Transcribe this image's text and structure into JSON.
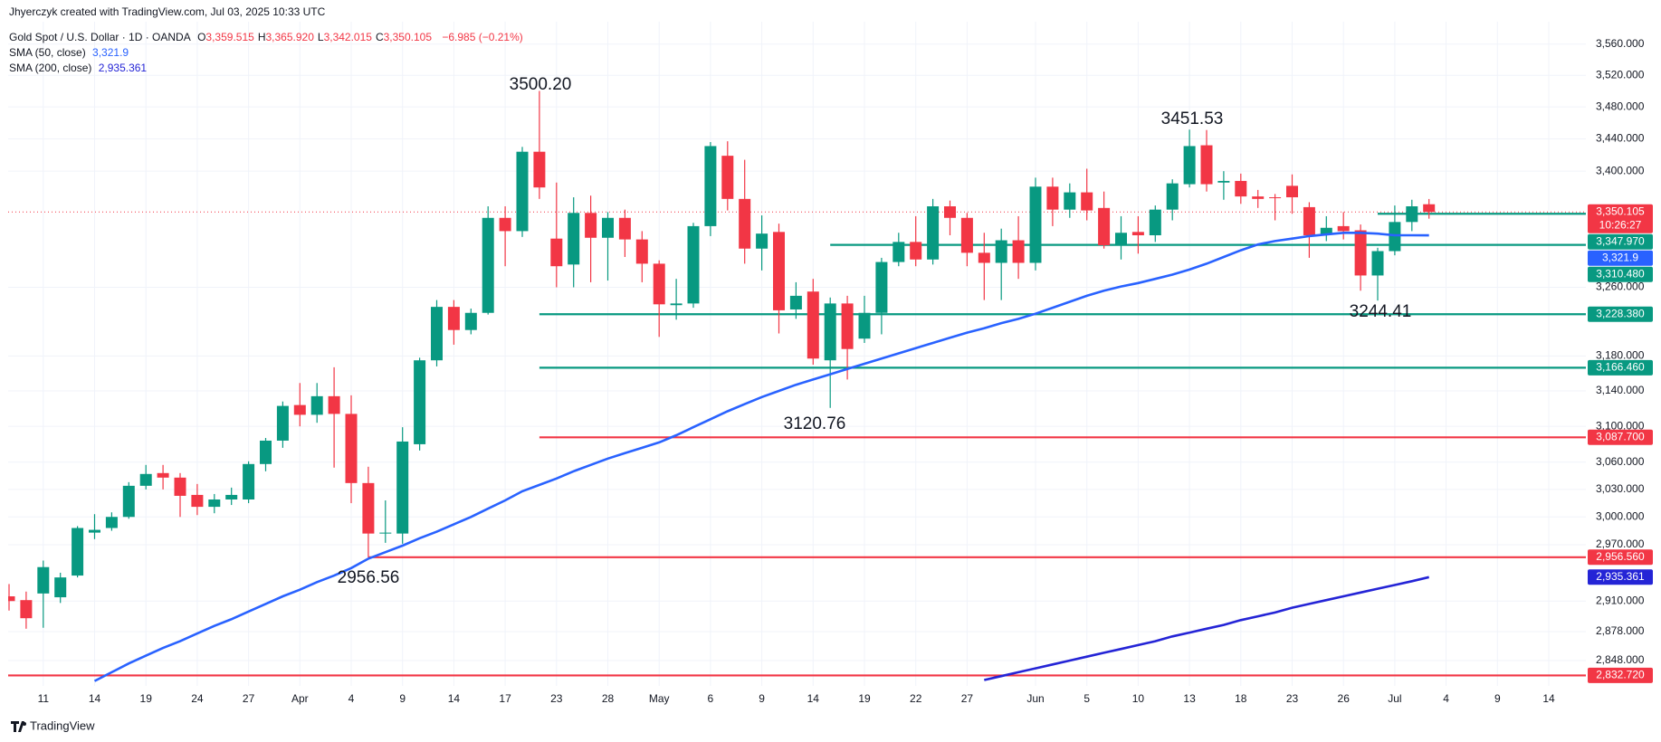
{
  "header": {
    "credit": "Jhyerczyk created with TradingView.com, Jul 03, 2025 10:33 UTC"
  },
  "chart_data": {
    "type": "candlestick",
    "title": "Gold Spot / U.S. Dollar · 1D · OANDA",
    "ohlc_legend": [
      {
        "key": "O",
        "value": "3,359.515"
      },
      {
        "key": "H",
        "value": "3,365.920"
      },
      {
        "key": "L",
        "value": "3,342.015"
      },
      {
        "key": "C",
        "value": "3,350.105"
      }
    ],
    "change": "−6.985 (−0.21%)",
    "categories": [
      null,
      null,
      "11",
      null,
      null,
      "14",
      null,
      null,
      "19",
      null,
      null,
      "24",
      null,
      null,
      "27",
      null,
      null,
      "Apr",
      null,
      null,
      "4",
      null,
      null,
      "9",
      null,
      null,
      "14",
      null,
      null,
      "17",
      null,
      null,
      "23",
      null,
      null,
      "28",
      null,
      null,
      "May",
      null,
      null,
      "6",
      null,
      null,
      "9",
      null,
      null,
      "14",
      null,
      null,
      "19",
      null,
      null,
      "22",
      null,
      null,
      "27",
      null,
      null,
      null,
      "Jun",
      null,
      null,
      "5",
      null,
      null,
      "10",
      null,
      null,
      "13",
      null,
      null,
      "18",
      null,
      null,
      "23",
      null,
      null,
      "26",
      null,
      null,
      "Jul",
      null,
      null,
      "4",
      null,
      null,
      "9",
      null,
      null,
      "14"
    ],
    "open": [
      2915,
      2911,
      2918,
      2914,
      2937,
      2983,
      2988,
      3000,
      3034,
      3048,
      3043,
      3024,
      3011,
      3019,
      3019,
      3058,
      3084,
      3124,
      3113,
      3134,
      3114,
      3037,
      2982,
      2982,
      3080,
      3175,
      3237,
      3210,
      3230,
      3343,
      3327,
      3424,
      3318,
      3287,
      3349,
      3319,
      3343,
      3317,
      3288,
      3239,
      3241,
      3333,
      3419,
      3366,
      3306,
      3326,
      3234,
      3255,
      3175,
      3241,
      3200,
      3230,
      3290,
      3314,
      3293,
      3357,
      3343,
      3301,
      3289,
      3316,
      3289,
      3381,
      3353,
      3374,
      3355,
      3310,
      3326,
      3322,
      3353,
      3384,
      3432,
      3386,
      3388,
      3369,
      3368,
      3382,
      3356,
      3323,
      3333,
      3328,
      3274,
      3303,
      3338,
      3359.515,
      null,
      null,
      null,
      null,
      null,
      null,
      null
    ],
    "high": [
      2928,
      2920,
      2953,
      2940,
      2990,
      3003,
      3005,
      3038,
      3057,
      3057,
      3048,
      3036,
      3025,
      3032,
      3061,
      3087,
      3128,
      3149,
      3149,
      3167,
      3135,
      3055,
      3018,
      3099,
      3178,
      3245,
      3245,
      3235,
      3357,
      3357,
      3430,
      3500.2,
      3386,
      3368,
      3370,
      3350,
      3353,
      3327,
      3292,
      3270,
      3337,
      3436,
      3437,
      3414,
      3346,
      3336,
      3266,
      3270,
      3248,
      3250,
      3250,
      3295,
      3325,
      3345,
      3366,
      3364,
      3349,
      3325,
      3330,
      3345,
      3392,
      3392,
      3385,
      3403,
      3375,
      3345,
      3345,
      3358,
      3390,
      3451.53,
      3451,
      3400,
      3397,
      3377,
      3372,
      3396,
      3362,
      3345,
      3350,
      3335,
      3307,
      3358,
      3365,
      3365.92,
      null,
      null,
      null,
      null,
      null,
      null,
      null
    ],
    "low": [
      2900,
      2881,
      2882,
      2908,
      2935,
      2976,
      2985,
      2998,
      3030,
      3030,
      3000,
      3002,
      3004,
      3013,
      3015,
      3050,
      3076,
      3100,
      3104,
      3054,
      3015,
      2956.56,
      2972,
      2971,
      3073,
      3168,
      3193,
      3205,
      3228,
      3285,
      3320,
      3366,
      3260,
      3260,
      3266,
      3268,
      3296,
      3266,
      3202,
      3222,
      3236,
      3321,
      3352,
      3288,
      3280,
      3206,
      3223,
      3170,
      3120.76,
      3153,
      3195,
      3205,
      3285,
      3285,
      3287,
      3322,
      3285,
      3245,
      3245,
      3270,
      3280,
      3333,
      3343,
      3340,
      3306,
      3293,
      3300,
      3314,
      3340,
      3380,
      3375,
      3365,
      3360,
      3355,
      3340,
      3348,
      3295,
      3315,
      3317,
      3256,
      3244.41,
      3298,
      3327,
      3342.015,
      null,
      null,
      null,
      null,
      null,
      null,
      null
    ],
    "close": [
      2910,
      2892,
      2946,
      2935,
      2988,
      2986,
      3000,
      3034,
      3047,
      3043,
      3023,
      3011,
      3019,
      3024,
      3058,
      3084,
      3123,
      3113,
      3134,
      3114,
      3037,
      2982,
      2983,
      3083,
      3175,
      3237,
      3210,
      3230,
      3343,
      3327,
      3424,
      3380,
      3285,
      3349,
      3319,
      3343,
      3317,
      3288,
      3240,
      3241,
      3333,
      3431,
      3366,
      3306,
      3324,
      3233,
      3250,
      3177,
      3241,
      3188,
      3230,
      3290,
      3314,
      3293,
      3357,
      3343,
      3301,
      3289,
      3316,
      3289,
      3381,
      3353,
      3374,
      3352,
      3310,
      3325,
      3322,
      3353,
      3385,
      3431,
      3384,
      3388,
      3369,
      3366,
      3367,
      3368,
      3322,
      3331,
      3327,
      3274,
      3303,
      3338,
      3357,
      3350.105,
      null,
      null,
      null,
      null,
      null,
      null,
      null
    ],
    "up_color": "#089981",
    "down_color": "#f23645",
    "last_price": {
      "label": "3,350.105",
      "countdown": "10:26:27"
    },
    "indicators": [
      {
        "name": "SMA (50, close)",
        "value_label": "3,321.9",
        "color": "#2962ff",
        "values": [
          null,
          null,
          null,
          null,
          null,
          2827,
          2836,
          2845,
          2853,
          2861,
          2868,
          2876,
          2884,
          2891,
          2899,
          2907,
          2915,
          2922,
          2930,
          2937,
          2945,
          2955,
          2962,
          2969,
          2977,
          2984,
          2992,
          3000,
          3009,
          3018,
          3028,
          3035,
          3042,
          3050,
          3057,
          3064,
          3070,
          3076,
          3082,
          3090,
          3099,
          3108,
          3117,
          3125,
          3133,
          3140,
          3147,
          3153,
          3159,
          3165,
          3171,
          3177,
          3183,
          3189,
          3195,
          3201,
          3207,
          3212,
          3218,
          3223,
          3229,
          3236,
          3243,
          3250,
          3256,
          3261,
          3265,
          3270,
          3275,
          3281,
          3288,
          3296,
          3304,
          3311,
          3315,
          3318,
          3321,
          3323,
          3325,
          3325,
          3324,
          3322,
          3322,
          3321.9,
          null,
          null,
          null,
          null,
          null,
          null,
          null
        ]
      },
      {
        "name": "SMA (200, close)",
        "value_label": "2,935.361",
        "color": "#2424d6",
        "values": [
          null,
          null,
          null,
          null,
          null,
          null,
          null,
          null,
          null,
          null,
          null,
          null,
          null,
          null,
          null,
          null,
          null,
          null,
          null,
          null,
          null,
          null,
          null,
          null,
          null,
          null,
          null,
          null,
          null,
          null,
          null,
          null,
          null,
          null,
          null,
          null,
          null,
          null,
          null,
          null,
          null,
          null,
          null,
          null,
          null,
          null,
          null,
          null,
          null,
          null,
          null,
          null,
          null,
          null,
          null,
          null,
          null,
          2828,
          2832,
          2836,
          2840,
          2844,
          2848,
          2852,
          2856,
          2860,
          2864,
          2868,
          2873,
          2877,
          2881,
          2885,
          2890,
          2894,
          2898,
          2903,
          2907,
          2911,
          2915,
          2919,
          2923,
          2927,
          2931,
          2935.361,
          null,
          null,
          null,
          null,
          null,
          null,
          null
        ]
      }
    ],
    "levels": [
      {
        "value": 3347.97,
        "label": "3,347.970",
        "color": "#089981"
      },
      {
        "value": 3310.48,
        "label": "3,310.480",
        "color": "#089981"
      },
      {
        "value": 3228.38,
        "label": "3,228.380",
        "color": "#089981"
      },
      {
        "value": 3166.46,
        "label": "3,166.460",
        "color": "#089981"
      },
      {
        "value": 3087.7,
        "label": "3,087.700",
        "color": "#f23645"
      },
      {
        "value": 2956.56,
        "label": "2,956.560",
        "color": "#f23645"
      },
      {
        "value": 2832.72,
        "label": "2,832.720",
        "color": "#f23645"
      }
    ],
    "annotations": [
      {
        "text": "3500.20"
      },
      {
        "text": "3451.53"
      },
      {
        "text": "3120.76"
      },
      {
        "text": "2956.56"
      },
      {
        "text": "3244.41"
      }
    ],
    "ylim": [
      2822,
      3589
    ],
    "log_scale": true,
    "yticks": [
      {
        "value": 3560,
        "label": "3,560.000"
      },
      {
        "value": 3520,
        "label": "3,520.000"
      },
      {
        "value": 3480,
        "label": "3,480.000"
      },
      {
        "value": 3440,
        "label": "3,440.000"
      },
      {
        "value": 3400,
        "label": "3,400.000"
      },
      {
        "value": 3260,
        "label": "3,260.000"
      },
      {
        "value": 3180,
        "label": "3,180.000"
      },
      {
        "value": 3140,
        "label": "3,140.000"
      },
      {
        "value": 3100,
        "label": "3,100.000"
      },
      {
        "value": 3060,
        "label": "3,060.000"
      },
      {
        "value": 3030,
        "label": "3,030.000"
      },
      {
        "value": 3000,
        "label": "3,000.000"
      },
      {
        "value": 2970,
        "label": "2,970.000"
      },
      {
        "value": 2910,
        "label": "2,910.000"
      },
      {
        "value": 2878,
        "label": "2,878.000"
      },
      {
        "value": 2848,
        "label": "2,848.000"
      }
    ],
    "grid": true
  },
  "footer": {
    "brand": "TradingView"
  }
}
